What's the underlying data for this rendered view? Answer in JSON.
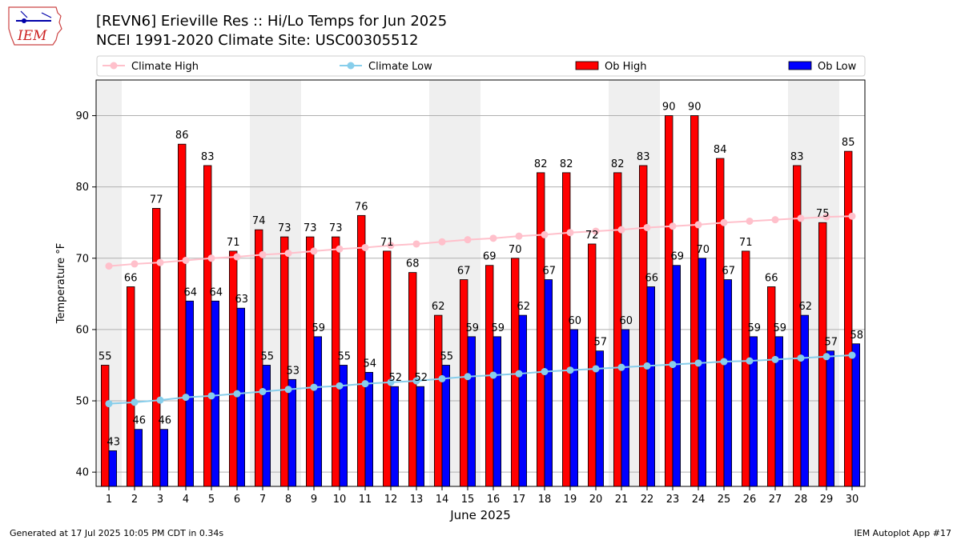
{
  "header": {
    "title_line1": "[REVN6] Erieville Res :: Hi/Lo Temps for Jun 2025",
    "title_line2": "NCEI 1991-2020 Climate Site: USC00305512"
  },
  "logo": {
    "text": "IEM",
    "icon": "iem-logo"
  },
  "footer": {
    "generated": "Generated at 17 Jul 2025 10:05 PM CDT in 0.34s",
    "app": "IEM Autoplot App #17"
  },
  "colors": {
    "ob_high": "#ff0000",
    "ob_low": "#0000ff",
    "climate_high": "#ffc0cb",
    "climate_low": "#87ceeb",
    "weekend_shade": "#efefef",
    "grid": "#b0b0b0"
  },
  "chart_data": {
    "type": "bar",
    "xlabel": "June 2025",
    "ylabel": "Temperature °F",
    "ylim": [
      38,
      95
    ],
    "yticks": [
      40,
      50,
      60,
      70,
      80,
      90
    ],
    "grid": "horizontal",
    "legend_position": "top",
    "categories": [
      "1",
      "2",
      "3",
      "4",
      "5",
      "6",
      "7",
      "8",
      "9",
      "10",
      "11",
      "12",
      "13",
      "14",
      "15",
      "16",
      "17",
      "18",
      "19",
      "20",
      "21",
      "22",
      "23",
      "24",
      "25",
      "26",
      "27",
      "28",
      "29",
      "30"
    ],
    "shaded_days": [
      1,
      7,
      8,
      14,
      15,
      21,
      22,
      28,
      29
    ],
    "series": [
      {
        "name": "Climate High",
        "kind": "line",
        "values": [
          68.9,
          69.2,
          69.4,
          69.7,
          70.0,
          70.2,
          70.5,
          70.7,
          71.0,
          71.3,
          71.5,
          71.8,
          72.0,
          72.3,
          72.6,
          72.8,
          73.1,
          73.3,
          73.6,
          73.8,
          74.0,
          74.3,
          74.5,
          74.7,
          75.0,
          75.2,
          75.4,
          75.6,
          75.8,
          75.9
        ]
      },
      {
        "name": "Climate Low",
        "kind": "line",
        "values": [
          49.6,
          49.8,
          50.1,
          50.5,
          50.7,
          51.0,
          51.3,
          51.6,
          51.9,
          52.1,
          52.4,
          52.6,
          52.8,
          53.1,
          53.4,
          53.6,
          53.8,
          54.1,
          54.3,
          54.5,
          54.7,
          54.9,
          55.1,
          55.3,
          55.5,
          55.6,
          55.8,
          56.0,
          56.2,
          56.4
        ]
      },
      {
        "name": "Ob High",
        "kind": "bar",
        "values": [
          55,
          66,
          77,
          86,
          83,
          71,
          74,
          73,
          73,
          73,
          76,
          71,
          68,
          62,
          67,
          69,
          70,
          82,
          82,
          72,
          82,
          83,
          90,
          90,
          84,
          71,
          66,
          83,
          75,
          85
        ]
      },
      {
        "name": "Ob Low",
        "kind": "bar",
        "values": [
          43,
          46,
          46,
          64,
          64,
          63,
          55,
          53,
          59,
          55,
          54,
          52,
          52,
          55,
          59,
          59,
          62,
          67,
          60,
          57,
          60,
          66,
          69,
          70,
          67,
          59,
          59,
          62,
          57,
          58
        ]
      }
    ]
  }
}
